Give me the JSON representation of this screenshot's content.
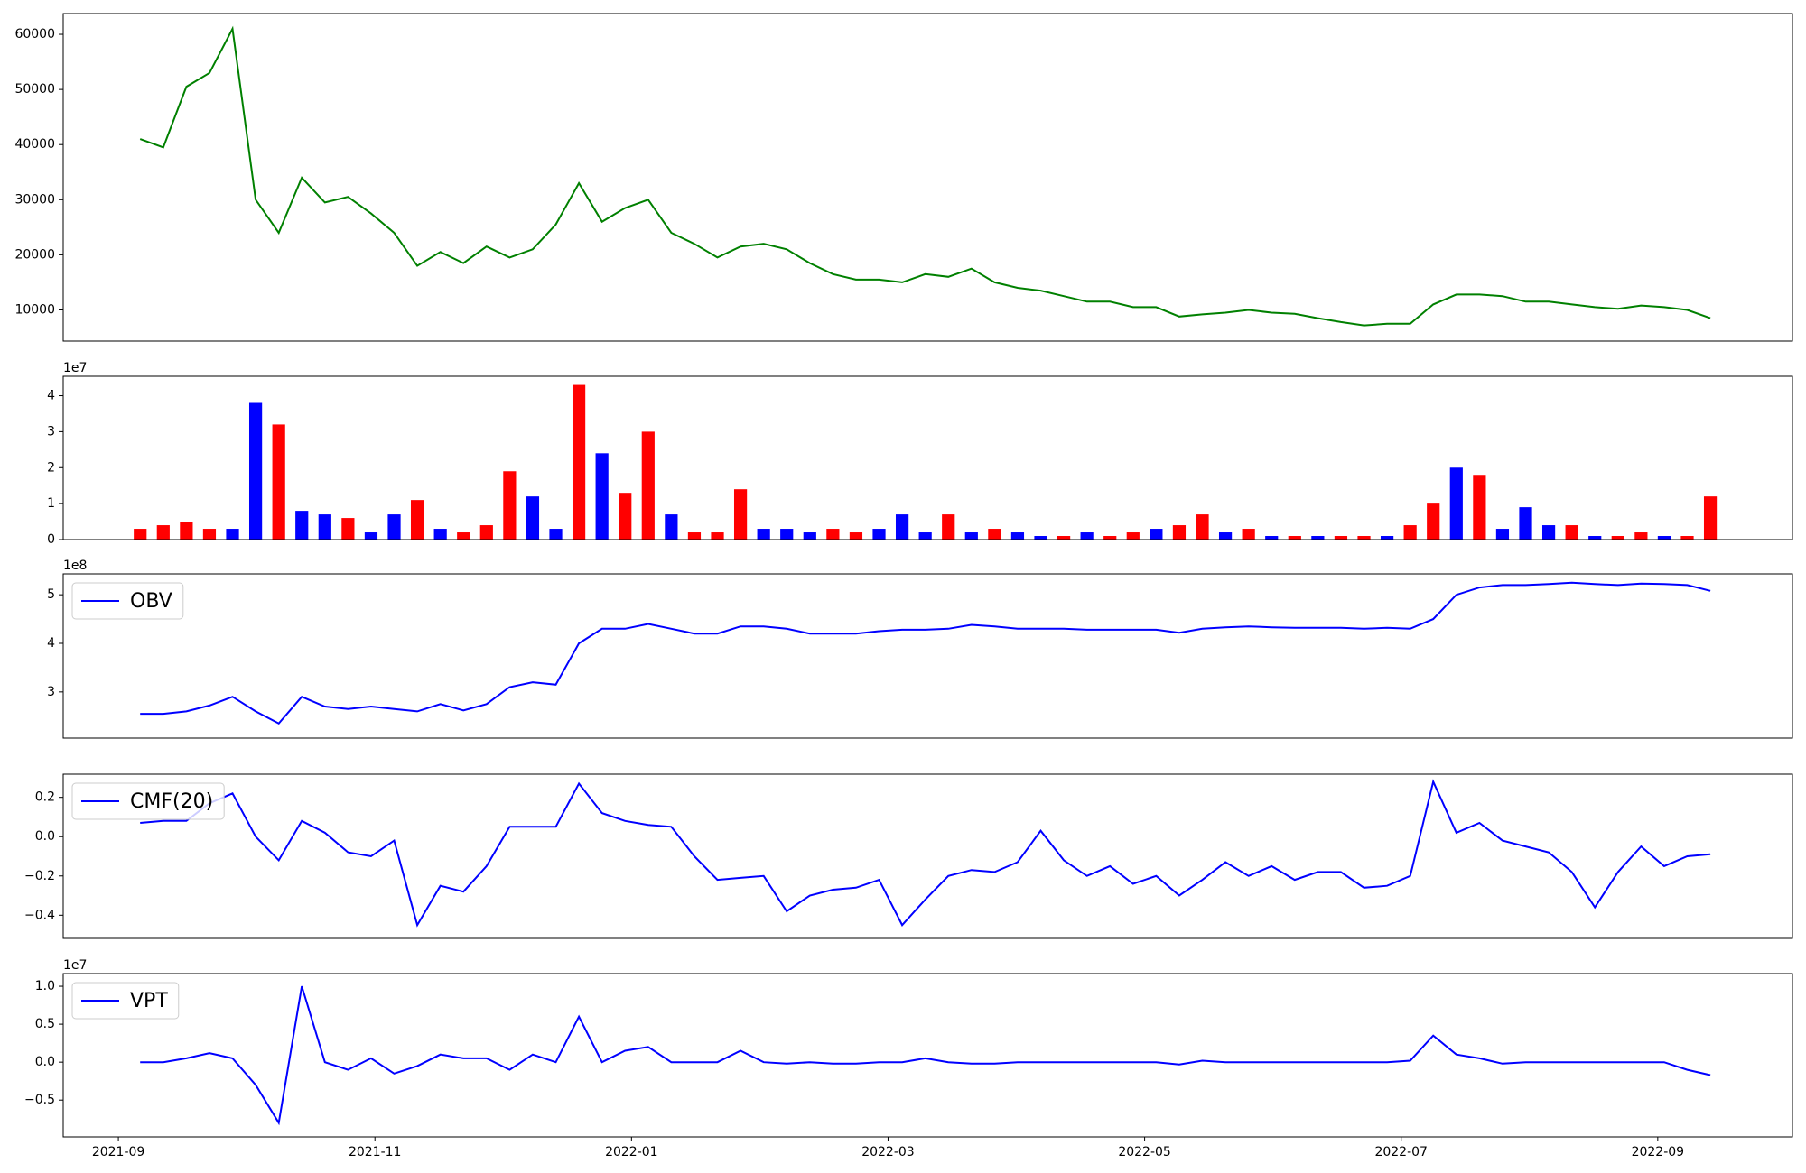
{
  "chart_data": [
    {
      "type": "line",
      "color": "green",
      "x": [
        0.17,
        0.35,
        0.53,
        0.71,
        0.89,
        1.07,
        1.25,
        1.43,
        1.61,
        1.79,
        1.97,
        2.15,
        2.33,
        2.51,
        2.69,
        2.87,
        3.05,
        3.23,
        3.41,
        3.59,
        3.77,
        3.95,
        4.13,
        4.31,
        4.49,
        4.67,
        4.85,
        5.03,
        5.21,
        5.39,
        5.57,
        5.75,
        5.93,
        6.11,
        6.29,
        6.47,
        6.65,
        6.83,
        7.01,
        7.19,
        7.37,
        7.55,
        7.73,
        7.91,
        8.09,
        8.27,
        8.45,
        8.63,
        8.81,
        8.99,
        9.17,
        9.35,
        9.53,
        9.71,
        9.89,
        10.07,
        10.25,
        10.43,
        10.61,
        10.79,
        10.97,
        11.15,
        11.33,
        11.51,
        11.69,
        11.87,
        12.05,
        12.23,
        12.41
      ],
      "values": [
        41000,
        39500,
        50500,
        53000,
        61000,
        30000,
        24000,
        34000,
        29500,
        30500,
        27500,
        24000,
        18000,
        20500,
        18500,
        21500,
        19500,
        21000,
        25500,
        33000,
        26000,
        28500,
        30000,
        24000,
        22000,
        19500,
        21500,
        22000,
        21000,
        18500,
        16500,
        15500,
        15500,
        15000,
        16500,
        16000,
        17500,
        15000,
        14000,
        13500,
        12500,
        11500,
        11500,
        10500,
        10500,
        8800,
        9200,
        9500,
        10000,
        9500,
        9300,
        8500,
        7800,
        7200,
        7500,
        7500,
        11000,
        12800,
        12800,
        12500,
        11500,
        11500,
        11000,
        10500,
        10200,
        10800,
        10500,
        10000,
        8500
      ],
      "xlim": [
        -0.43,
        13.05
      ],
      "ylim": [
        4350,
        63770
      ],
      "yticks": [
        10000,
        20000,
        30000,
        40000,
        50000,
        60000
      ]
    },
    {
      "type": "bar",
      "offset_label": "1e7",
      "x": [
        0.17,
        0.35,
        0.53,
        0.71,
        0.89,
        1.07,
        1.25,
        1.43,
        1.61,
        1.79,
        1.97,
        2.15,
        2.33,
        2.51,
        2.69,
        2.87,
        3.05,
        3.23,
        3.41,
        3.59,
        3.77,
        3.95,
        4.13,
        4.31,
        4.49,
        4.67,
        4.85,
        5.03,
        5.21,
        5.39,
        5.57,
        5.75,
        5.93,
        6.11,
        6.29,
        6.47,
        6.65,
        6.83,
        7.01,
        7.19,
        7.37,
        7.55,
        7.73,
        7.91,
        8.09,
        8.27,
        8.45,
        8.63,
        8.81,
        8.99,
        9.17,
        9.35,
        9.53,
        9.71,
        9.89,
        10.07,
        10.25,
        10.43,
        10.61,
        10.79,
        10.97,
        11.15,
        11.33,
        11.51,
        11.69,
        11.87,
        12.05,
        12.23,
        12.41
      ],
      "values": [
        3000000.0,
        4000000.0,
        5000000.0,
        3000000.0,
        3000000.0,
        38000000.0,
        32000000.0,
        8000000.0,
        7000000.0,
        6000000.0,
        2000000.0,
        7000000.0,
        11000000.0,
        3000000.0,
        2000000.0,
        4000000.0,
        19000000.0,
        12000000.0,
        3000000.0,
        43000000.0,
        24000000.0,
        13000000.0,
        30000000.0,
        7000000.0,
        2000000.0,
        2000000.0,
        14000000.0,
        3000000.0,
        3000000.0,
        2000000.0,
        3000000.0,
        2000000.0,
        3000000.0,
        7000000.0,
        2000000.0,
        7000000.0,
        2000000.0,
        3000000.0,
        2000000.0,
        1000000.0,
        1000000.0,
        2000000.0,
        1000000.0,
        2000000.0,
        3000000.0,
        4000000.0,
        7000000.0,
        2000000.0,
        3000000.0,
        1000000.0,
        1000000.0,
        1000000.0,
        1000000.0,
        1000000.0,
        1000000.0,
        4000000.0,
        10000000.0,
        20000000.0,
        18000000.0,
        3000000.0,
        9000000.0,
        4000000.0,
        4000000.0,
        1000000.0,
        1000000.0,
        2000000.0,
        1000000.0,
        1000000.0,
        12000000.0
      ],
      "colors": [
        "red",
        "red",
        "red",
        "red",
        "blue",
        "blue",
        "red",
        "blue",
        "blue",
        "red",
        "blue",
        "blue",
        "red",
        "blue",
        "red",
        "red",
        "red",
        "blue",
        "blue",
        "red",
        "blue",
        "red",
        "red",
        "blue",
        "red",
        "red",
        "red",
        "blue",
        "blue",
        "blue",
        "red",
        "red",
        "blue",
        "blue",
        "blue",
        "red",
        "blue",
        "red",
        "blue",
        "blue",
        "red",
        "blue",
        "red",
        "red",
        "blue",
        "red",
        "red",
        "blue",
        "red",
        "blue",
        "red",
        "blue",
        "red",
        "red",
        "blue",
        "red",
        "red",
        "blue",
        "red",
        "blue",
        "blue",
        "blue",
        "red",
        "blue",
        "red",
        "red",
        "blue",
        "red",
        "red"
      ],
      "xlim": [
        -0.43,
        13.05
      ],
      "ylim": [
        0,
        45400000.0
      ],
      "yticks": [
        {
          "value": 0,
          "label": "0"
        },
        {
          "value": 10000000.0,
          "label": "1"
        },
        {
          "value": 20000000.0,
          "label": "2"
        },
        {
          "value": 30000000.0,
          "label": "3"
        },
        {
          "value": 40000000.0,
          "label": "4"
        }
      ]
    },
    {
      "type": "line",
      "name": "OBV",
      "color": "blue",
      "legend": "upper left",
      "offset_label": "1e8",
      "x": [
        0.17,
        0.35,
        0.53,
        0.71,
        0.89,
        1.07,
        1.25,
        1.43,
        1.61,
        1.79,
        1.97,
        2.15,
        2.33,
        2.51,
        2.69,
        2.87,
        3.05,
        3.23,
        3.41,
        3.59,
        3.77,
        3.95,
        4.13,
        4.31,
        4.49,
        4.67,
        4.85,
        5.03,
        5.21,
        5.39,
        5.57,
        5.75,
        5.93,
        6.11,
        6.29,
        6.47,
        6.65,
        6.83,
        7.01,
        7.19,
        7.37,
        7.55,
        7.73,
        7.91,
        8.09,
        8.27,
        8.45,
        8.63,
        8.81,
        8.99,
        9.17,
        9.35,
        9.53,
        9.71,
        9.89,
        10.07,
        10.25,
        10.43,
        10.61,
        10.79,
        10.97,
        11.15,
        11.33,
        11.51,
        11.69,
        11.87,
        12.05,
        12.23,
        12.41
      ],
      "values": [
        255000000.0,
        255000000.0,
        260000000.0,
        272000000.0,
        290000000.0,
        260000000.0,
        235000000.0,
        290000000.0,
        270000000.0,
        265000000.0,
        270000000.0,
        265000000.0,
        260000000.0,
        275000000.0,
        262000000.0,
        275000000.0,
        310000000.0,
        320000000.0,
        315000000.0,
        400000000.0,
        430000000.0,
        430000000.0,
        440000000.0,
        430000000.0,
        420000000.0,
        420000000.0,
        435000000.0,
        435000000.0,
        430000000.0,
        420000000.0,
        420000000.0,
        420000000.0,
        425000000.0,
        428000000.0,
        428000000.0,
        430000000.0,
        438000000.0,
        435000000.0,
        430000000.0,
        430000000.0,
        430000000.0,
        428000000.0,
        428000000.0,
        428000000.0,
        428000000.0,
        422000000.0,
        430000000.0,
        433000000.0,
        435000000.0,
        433000000.0,
        432000000.0,
        432000000.0,
        432000000.0,
        430000000.0,
        432000000.0,
        430000000.0,
        450000000.0,
        500000000.0,
        515000000.0,
        520000000.0,
        520000000.0,
        522000000.0,
        525000000.0,
        522000000.0,
        520000000.0,
        523000000.0,
        522000000.0,
        520000000.0,
        508000000.0
      ],
      "xlim": [
        -0.43,
        13.05
      ],
      "ylim": [
        205000000.0,
        543000000.0
      ],
      "yticks": [
        {
          "value": 300000000.0,
          "label": "3"
        },
        {
          "value": 400000000.0,
          "label": "4"
        },
        {
          "value": 500000000.0,
          "label": "5"
        }
      ]
    },
    {
      "type": "line",
      "name": "CMF(20)",
      "color": "blue",
      "legend": "upper left",
      "x": [
        0.17,
        0.35,
        0.53,
        0.71,
        0.89,
        1.07,
        1.25,
        1.43,
        1.61,
        1.79,
        1.97,
        2.15,
        2.33,
        2.51,
        2.69,
        2.87,
        3.05,
        3.23,
        3.41,
        3.59,
        3.77,
        3.95,
        4.13,
        4.31,
        4.49,
        4.67,
        4.85,
        5.03,
        5.21,
        5.39,
        5.57,
        5.75,
        5.93,
        6.11,
        6.29,
        6.47,
        6.65,
        6.83,
        7.01,
        7.19,
        7.37,
        7.55,
        7.73,
        7.91,
        8.09,
        8.27,
        8.45,
        8.63,
        8.81,
        8.99,
        9.17,
        9.35,
        9.53,
        9.71,
        9.89,
        10.07,
        10.25,
        10.43,
        10.61,
        10.79,
        10.97,
        11.15,
        11.33,
        11.51,
        11.69,
        11.87,
        12.05,
        12.23,
        12.41
      ],
      "values": [
        0.07,
        0.08,
        0.08,
        0.17,
        0.22,
        0.0,
        -0.12,
        0.08,
        0.02,
        -0.08,
        -0.1,
        -0.02,
        -0.45,
        -0.25,
        -0.28,
        -0.15,
        0.05,
        0.05,
        0.05,
        0.27,
        0.12,
        0.08,
        0.06,
        0.05,
        -0.1,
        -0.22,
        -0.21,
        -0.2,
        -0.38,
        -0.3,
        -0.27,
        -0.26,
        -0.22,
        -0.45,
        -0.32,
        -0.2,
        -0.17,
        -0.18,
        -0.13,
        0.03,
        -0.12,
        -0.2,
        -0.15,
        -0.24,
        -0.2,
        -0.3,
        -0.22,
        -0.13,
        -0.2,
        -0.15,
        -0.22,
        -0.18,
        -0.18,
        -0.26,
        -0.25,
        -0.2,
        0.28,
        0.02,
        0.07,
        -0.02,
        -0.05,
        -0.08,
        -0.18,
        -0.36,
        -0.18,
        -0.05,
        -0.15,
        -0.1,
        -0.09
      ],
      "xlim": [
        -0.43,
        13.05
      ],
      "ylim": [
        -0.518,
        0.318
      ],
      "yticks": [
        {
          "value": -0.4,
          "label": "−0.4"
        },
        {
          "value": -0.2,
          "label": "−0.2"
        },
        {
          "value": 0,
          "label": "0.0"
        },
        0.2
      ]
    },
    {
      "type": "line",
      "name": "VPT",
      "color": "blue",
      "legend": "upper left",
      "offset_label": "1e7",
      "x": [
        0.17,
        0.35,
        0.53,
        0.71,
        0.89,
        1.07,
        1.25,
        1.43,
        1.61,
        1.79,
        1.97,
        2.15,
        2.33,
        2.51,
        2.69,
        2.87,
        3.05,
        3.23,
        3.41,
        3.59,
        3.77,
        3.95,
        4.13,
        4.31,
        4.49,
        4.67,
        4.85,
        5.03,
        5.21,
        5.39,
        5.57,
        5.75,
        5.93,
        6.11,
        6.29,
        6.47,
        6.65,
        6.83,
        7.01,
        7.19,
        7.37,
        7.55,
        7.73,
        7.91,
        8.09,
        8.27,
        8.45,
        8.63,
        8.81,
        8.99,
        9.17,
        9.35,
        9.53,
        9.71,
        9.89,
        10.07,
        10.25,
        10.43,
        10.61,
        10.79,
        10.97,
        11.15,
        11.33,
        11.51,
        11.69,
        11.87,
        12.05,
        12.23,
        12.41
      ],
      "values": [
        0,
        0,
        500000.0,
        1200000.0,
        500000.0,
        -3000000.0,
        -8000000.0,
        10000000.0,
        0,
        -1000000.0,
        500000.0,
        -1500000.0,
        -500000.0,
        1000000.0,
        500000.0,
        500000.0,
        -1000000.0,
        1000000.0,
        0,
        6000000.0,
        0,
        1500000.0,
        2000000.0,
        0,
        0,
        0,
        1500000.0,
        0,
        -200000.0,
        0,
        -200000.0,
        -200000.0,
        0,
        0,
        500000.0,
        0,
        -200000.0,
        -200000.0,
        0,
        0,
        0,
        0,
        0,
        0,
        0,
        -300000.0,
        200000.0,
        0,
        0,
        0,
        0,
        0,
        0,
        0,
        0,
        200000.0,
        3500000.0,
        1000000.0,
        500000.0,
        -200000.0,
        0,
        0,
        0,
        0,
        0,
        0,
        0,
        -1000000.0,
        -1700000.0
      ],
      "xlim": [
        -0.43,
        13.05
      ],
      "ylim": [
        -9850000.0,
        11670000.0
      ],
      "yticks": [
        {
          "value": -5000000.0,
          "label": "−0.5"
        },
        {
          "value": 0,
          "label": "0.0"
        },
        {
          "value": 5000000.0,
          "label": "0.5"
        },
        {
          "value": 10000000.0,
          "label": "1.0"
        }
      ],
      "xticks": [
        {
          "value": 0,
          "label": "2021-09"
        },
        {
          "value": 2,
          "label": "2021-11"
        },
        {
          "value": 4,
          "label": "2022-01"
        },
        {
          "value": 6,
          "label": "2022-03"
        },
        {
          "value": 8,
          "label": "2022-05"
        },
        {
          "value": 10,
          "label": "2022-07"
        },
        {
          "value": 12,
          "label": "2022-09"
        }
      ]
    }
  ]
}
